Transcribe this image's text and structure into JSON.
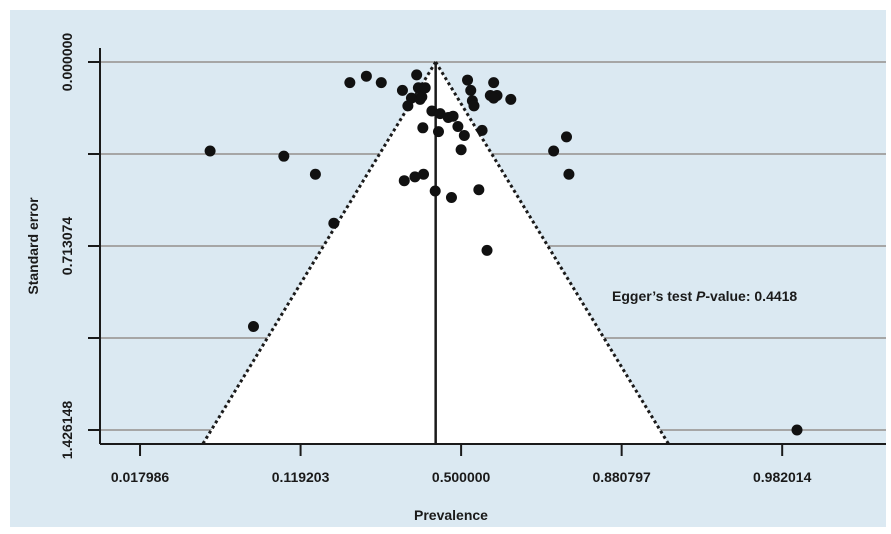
{
  "chart_data": {
    "type": "scatter",
    "title": "",
    "xlabel": "Prevalence",
    "ylabel": "Standard error",
    "x_scale": "logit",
    "y_reversed": true,
    "x_ticks": [
      0.017986,
      0.119203,
      0.5,
      0.880797,
      0.982014
    ],
    "x_tick_labels": [
      "0.017986",
      "0.119203",
      "0.500000",
      "0.880797",
      "0.982014"
    ],
    "x_range": [
      0.011,
      0.995
    ],
    "y_ticks": [
      0,
      0.356537,
      0.713074,
      1.069611,
      1.426148
    ],
    "y_tick_labels": [
      "0.000000",
      "",
      "0.713074",
      "",
      "1.426148"
    ],
    "y_range": [
      0,
      1.426148
    ],
    "gridlines": "horizontal",
    "pooled_estimate": 0.4214,
    "funnel": {
      "center": 0.4214,
      "apex_se": 0,
      "confidence": 0.95,
      "style": "dotted"
    },
    "annotation": {
      "prefix": "Egger’s test ",
      "italic": "P",
      "suffix": "-value: 0.4418"
    },
    "series": [
      {
        "points": [
          {
            "x": 0.2,
            "y": 0.08
          },
          {
            "x": 0.235,
            "y": 0.055
          },
          {
            "x": 0.27,
            "y": 0.08
          },
          {
            "x": 0.325,
            "y": 0.11
          },
          {
            "x": 0.34,
            "y": 0.17
          },
          {
            "x": 0.35,
            "y": 0.14
          },
          {
            "x": 0.365,
            "y": 0.05
          },
          {
            "x": 0.37,
            "y": 0.1
          },
          {
            "x": 0.375,
            "y": 0.145
          },
          {
            "x": 0.38,
            "y": 0.135
          },
          {
            "x": 0.383,
            "y": 0.255
          },
          {
            "x": 0.385,
            "y": 0.435
          },
          {
            "x": 0.33,
            "y": 0.46
          },
          {
            "x": 0.36,
            "y": 0.445
          },
          {
            "x": 0.39,
            "y": 0.1
          },
          {
            "x": 0.41,
            "y": 0.19
          },
          {
            "x": 0.42,
            "y": 0.5
          },
          {
            "x": 0.43,
            "y": 0.27
          },
          {
            "x": 0.435,
            "y": 0.2
          },
          {
            "x": 0.46,
            "y": 0.215
          },
          {
            "x": 0.47,
            "y": 0.525
          },
          {
            "x": 0.475,
            "y": 0.21
          },
          {
            "x": 0.49,
            "y": 0.25
          },
          {
            "x": 0.5,
            "y": 0.34
          },
          {
            "x": 0.51,
            "y": 0.285
          },
          {
            "x": 0.52,
            "y": 0.07
          },
          {
            "x": 0.53,
            "y": 0.11
          },
          {
            "x": 0.535,
            "y": 0.15
          },
          {
            "x": 0.54,
            "y": 0.17
          },
          {
            "x": 0.555,
            "y": 0.495
          },
          {
            "x": 0.565,
            "y": 0.265
          },
          {
            "x": 0.58,
            "y": 0.73
          },
          {
            "x": 0.59,
            "y": 0.13
          },
          {
            "x": 0.6,
            "y": 0.08
          },
          {
            "x": 0.61,
            "y": 0.13
          },
          {
            "x": 0.6,
            "y": 0.14
          },
          {
            "x": 0.65,
            "y": 0.145
          },
          {
            "x": 0.76,
            "y": 0.345
          },
          {
            "x": 0.788,
            "y": 0.29
          },
          {
            "x": 0.793,
            "y": 0.435
          },
          {
            "x": 0.042,
            "y": 0.345
          },
          {
            "x": 0.099,
            "y": 0.365
          },
          {
            "x": 0.14,
            "y": 0.435
          },
          {
            "x": 0.17,
            "y": 0.625
          },
          {
            "x": 0.07,
            "y": 1.025
          },
          {
            "x": 0.985,
            "y": 1.426
          }
        ]
      }
    ]
  }
}
